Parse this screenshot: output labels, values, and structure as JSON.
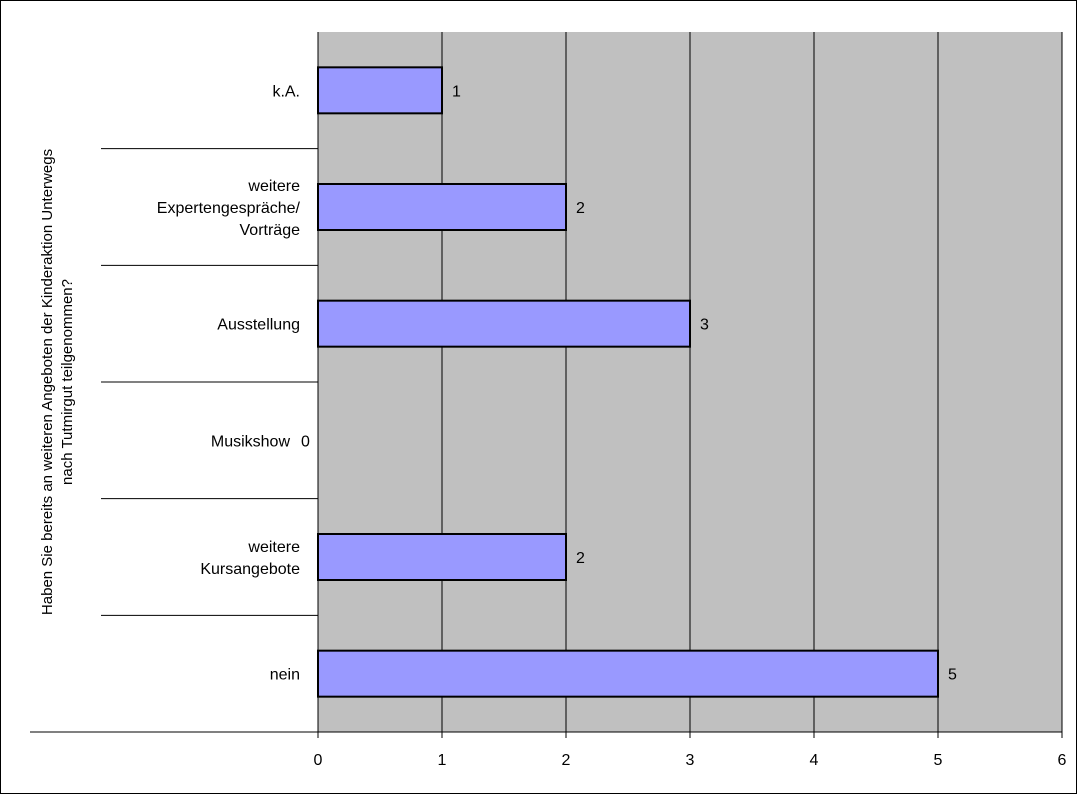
{
  "chart_data": {
    "type": "bar",
    "orientation": "horizontal",
    "ylabel_lines": [
      "Haben Sie bereits an weiteren Angeboten der Kinderaktion Unterwegs",
      "nach Tutmirgut teilgenommen?"
    ],
    "categories": [
      {
        "lines": [
          "k.A."
        ],
        "value": 1,
        "label": "1"
      },
      {
        "lines": [
          "weitere",
          "Expertengespräche/",
          "Vorträge"
        ],
        "value": 2,
        "label": "2"
      },
      {
        "lines": [
          "Ausstellung"
        ],
        "value": 3,
        "label": "3"
      },
      {
        "lines": [
          "Musikshow"
        ],
        "value": 0,
        "label": "0"
      },
      {
        "lines": [
          "weitere",
          "Kursangebote"
        ],
        "value": 2,
        "label": "2"
      },
      {
        "lines": [
          "nein"
        ],
        "value": 5,
        "label": "5"
      }
    ],
    "xlim": [
      0,
      6
    ],
    "xticks": [
      "0",
      "1",
      "2",
      "3",
      "4",
      "5",
      "6"
    ],
    "grid": true,
    "colors": {
      "plot_background": "#c0c0c0",
      "bar_fill": "#9999ff",
      "bar_stroke": "#000000",
      "grid": "#000000"
    }
  }
}
